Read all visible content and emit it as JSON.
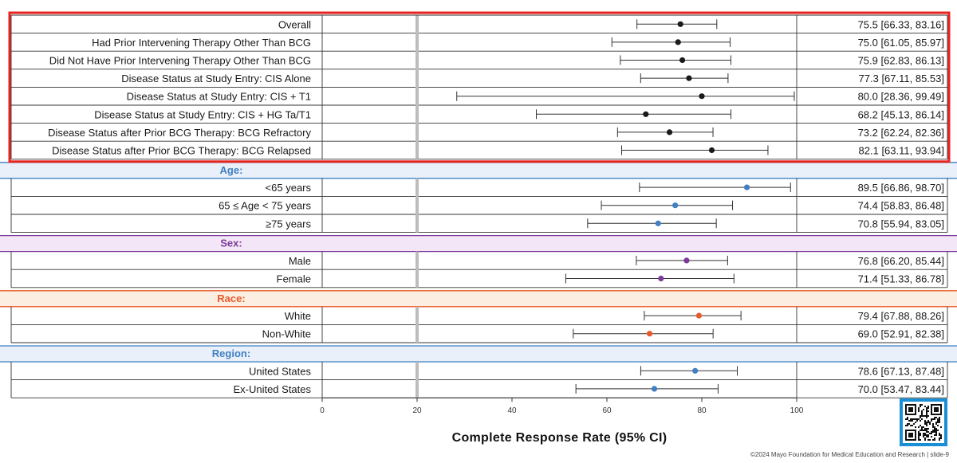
{
  "chart_data": {
    "type": "forest",
    "xlabel": "Complete Response Rate (95% CI)",
    "xlim": [
      0,
      100
    ],
    "xticks": [
      0,
      20,
      40,
      60,
      80,
      100
    ],
    "reference_line": 20,
    "colors": {
      "Overall": "#1a1a1a",
      "Age": "#3f7fc2",
      "Sex": "#7d3a9c",
      "Race": "#e85a2a",
      "Region": "#3f7fc2",
      "highlight_box": "#e8231f"
    },
    "groups": [
      {
        "header": "",
        "color_key": "Overall",
        "rows": [
          {
            "label": "Overall",
            "estimate": 75.5,
            "lower": 66.33,
            "upper": 83.16,
            "text": "75.5 [66.33, 83.16]"
          },
          {
            "label": "Had Prior Intervening Therapy Other Than BCG",
            "estimate": 75.0,
            "lower": 61.05,
            "upper": 85.97,
            "text": "75.0 [61.05, 85.97]"
          },
          {
            "label": "Did Not Have Prior Intervening Therapy Other Than BCG",
            "estimate": 75.9,
            "lower": 62.83,
            "upper": 86.13,
            "text": "75.9 [62.83, 86.13]"
          },
          {
            "label": "Disease Status at Study Entry: CIS Alone",
            "estimate": 77.3,
            "lower": 67.11,
            "upper": 85.53,
            "text": "77.3 [67.11, 85.53]"
          },
          {
            "label": "Disease Status at Study Entry: CIS + T1",
            "estimate": 80.0,
            "lower": 28.36,
            "upper": 99.49,
            "text": "80.0 [28.36, 99.49]"
          },
          {
            "label": "Disease Status at Study Entry: CIS + HG Ta/T1",
            "estimate": 68.2,
            "lower": 45.13,
            "upper": 86.14,
            "text": "68.2 [45.13, 86.14]"
          },
          {
            "label": "Disease Status after Prior BCG Therapy: BCG Refractory",
            "estimate": 73.2,
            "lower": 62.24,
            "upper": 82.36,
            "text": "73.2 [62.24, 82.36]"
          },
          {
            "label": "Disease Status after Prior BCG Therapy: BCG Relapsed",
            "estimate": 82.1,
            "lower": 63.11,
            "upper": 93.94,
            "text": "82.1 [63.11, 93.94]"
          }
        ]
      },
      {
        "header": "Age:",
        "color_key": "Age",
        "header_bg": "#e9f0f9",
        "rows": [
          {
            "label": "<65 years",
            "estimate": 89.5,
            "lower": 66.86,
            "upper": 98.7,
            "text": "89.5 [66.86, 98.70]"
          },
          {
            "label": "65 ≤ Age < 75 years",
            "estimate": 74.4,
            "lower": 58.83,
            "upper": 86.48,
            "text": "74.4 [58.83, 86.48]"
          },
          {
            "label": "≥75 years",
            "estimate": 70.8,
            "lower": 55.94,
            "upper": 83.05,
            "text": "70.8 [55.94, 83.05]"
          }
        ]
      },
      {
        "header": "Sex:",
        "color_key": "Sex",
        "header_bg": "#f3e6f6",
        "rows": [
          {
            "label": "Male",
            "estimate": 76.8,
            "lower": 66.2,
            "upper": 85.44,
            "text": "76.8 [66.20, 85.44]"
          },
          {
            "label": "Female",
            "estimate": 71.4,
            "lower": 51.33,
            "upper": 86.78,
            "text": "71.4 [51.33, 86.78]"
          }
        ]
      },
      {
        "header": "Race:",
        "color_key": "Race",
        "header_bg": "#fdeee2",
        "rows": [
          {
            "label": "White",
            "estimate": 79.4,
            "lower": 67.88,
            "upper": 88.26,
            "text": "79.4 [67.88, 88.26]"
          },
          {
            "label": "Non-White",
            "estimate": 69.0,
            "lower": 52.91,
            "upper": 82.38,
            "text": "69.0 [52.91, 82.38]"
          }
        ]
      },
      {
        "header": "Region:",
        "color_key": "Region",
        "header_bg": "#e9f0f9",
        "rows": [
          {
            "label": "United States",
            "estimate": 78.6,
            "lower": 67.13,
            "upper": 87.48,
            "text": "78.6 [67.13, 87.48]"
          },
          {
            "label": "Ex-United States",
            "estimate": 70.0,
            "lower": 53.47,
            "upper": 83.44,
            "text": "70.0 [53.47, 83.44]"
          }
        ]
      }
    ]
  },
  "footer": {
    "copyright": "©2024 Mayo Foundation for Medical Education and Research  |  slide-9"
  },
  "qr": {
    "icon": "qr-code-icon",
    "frame_color": "#1a8fd6"
  }
}
